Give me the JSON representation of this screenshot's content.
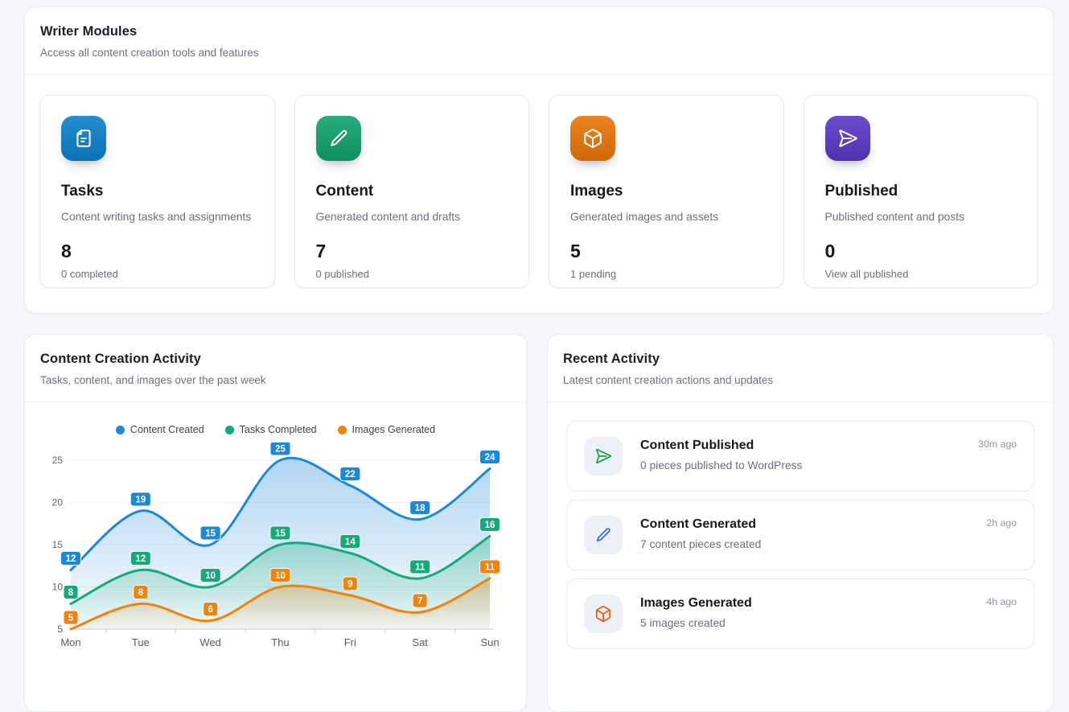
{
  "writer_modules": {
    "title": "Writer Modules",
    "subtitle": "Access all content creation tools and features",
    "cards": [
      {
        "icon": "file-text-icon",
        "color": "#0d81cb",
        "title": "Tasks",
        "description": "Content writing tasks and assignments",
        "count": "8",
        "sub": "0 completed"
      },
      {
        "icon": "pencil-icon",
        "color": "#10a36e",
        "title": "Content",
        "description": "Generated content and drafts",
        "count": "7",
        "sub": "0 published"
      },
      {
        "icon": "box-icon",
        "color": "#e97708",
        "title": "Images",
        "description": "Generated images and assets",
        "count": "5",
        "sub": "1 pending"
      },
      {
        "icon": "send-icon",
        "color": "#5a38c8",
        "title": "Published",
        "description": "Published content and posts",
        "count": "0",
        "sub": "View all published"
      }
    ]
  },
  "activity_chart": {
    "title": "Content Creation Activity",
    "subtitle": "Tasks, content, and images over the past week"
  },
  "chart_data": {
    "type": "line",
    "categories": [
      "Mon",
      "Tue",
      "Wed",
      "Thu",
      "Fri",
      "Sat",
      "Sun"
    ],
    "series": [
      {
        "name": "Content Created",
        "color": "#1e88d8",
        "values": [
          12,
          19,
          15,
          25,
          22,
          18,
          24
        ]
      },
      {
        "name": "Tasks Completed",
        "color": "#17a97a",
        "values": [
          8,
          12,
          10,
          15,
          14,
          11,
          16
        ]
      },
      {
        "name": "Images Generated",
        "color": "#f0820e",
        "values": [
          5,
          8,
          6,
          10,
          9,
          7,
          11
        ]
      }
    ],
    "ylim": [
      5,
      25
    ],
    "yticks": [
      5,
      10,
      15,
      20,
      25
    ],
    "smooth": true,
    "area": true,
    "data_labels": true,
    "grid": true,
    "legend_position": "top"
  },
  "recent_activity": {
    "title": "Recent Activity",
    "subtitle": "Latest content creation actions and updates",
    "items": [
      {
        "icon": "send-icon",
        "icon_color": "#17a34a",
        "title": "Content Published",
        "description": "0 pieces published to WordPress",
        "time": "30m ago"
      },
      {
        "icon": "pencil-icon",
        "icon_color": "#3b68d8",
        "title": "Content Generated",
        "description": "7 content pieces created",
        "time": "2h ago"
      },
      {
        "icon": "box-icon",
        "icon_color": "#ea580c",
        "title": "Images Generated",
        "description": "5 images created",
        "time": "4h ago"
      }
    ]
  }
}
